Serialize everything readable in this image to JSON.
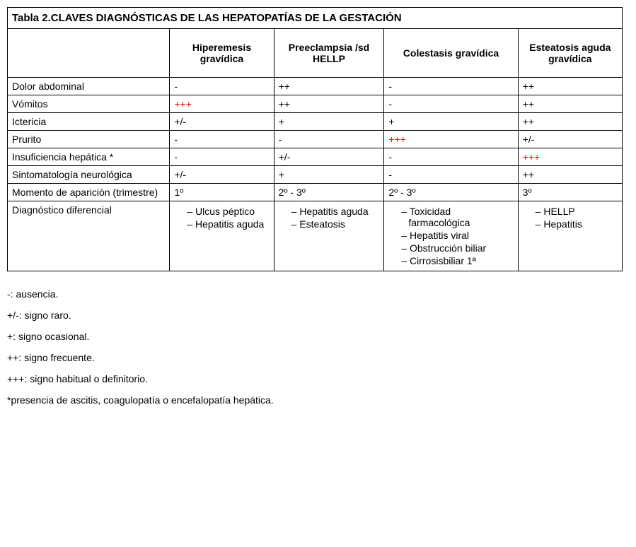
{
  "title": "Tabla 2.CLAVES DIAGNÓSTICAS DE LAS HEPATOPATÍAS DE LA GESTACIÓN",
  "columns": {
    "c1": "Hiperemesis gravídica",
    "c2": "Preeclampsia /sd HELLP",
    "c3": "Colestasis gravídica",
    "c4": "Esteatosis aguda gravídica"
  },
  "col_widths": {
    "label": "218px",
    "c1": "140px",
    "c2": "148px",
    "c3": "180px",
    "c4": "140px"
  },
  "rows": [
    {
      "label": "Dolor abdominal",
      "cells": [
        {
          "v": "-",
          "red": false
        },
        {
          "v": "++",
          "red": false
        },
        {
          "v": "-",
          "red": false
        },
        {
          "v": "++",
          "red": false
        }
      ]
    },
    {
      "label": "Vómitos",
      "cells": [
        {
          "v": "+++",
          "red": true
        },
        {
          "v": "++",
          "red": false
        },
        {
          "v": "-",
          "red": false
        },
        {
          "v": "++",
          "red": false
        }
      ]
    },
    {
      "label": "Ictericia",
      "cells": [
        {
          "v": "+/-",
          "red": false
        },
        {
          "v": "+",
          "red": false
        },
        {
          "v": "+",
          "red": false
        },
        {
          "v": "++",
          "red": false
        }
      ]
    },
    {
      "label": "Prurito",
      "cells": [
        {
          "v": "-",
          "red": false
        },
        {
          "v": "-",
          "red": false
        },
        {
          "v": "+++",
          "red": true
        },
        {
          "v": "+/-",
          "red": false
        }
      ]
    },
    {
      "label": "Insuficiencia hepática *",
      "cells": [
        {
          "v": "-",
          "red": false
        },
        {
          "v": "+/-",
          "red": false
        },
        {
          "v": "-",
          "red": false
        },
        {
          "v": "+++",
          "red": true
        }
      ]
    },
    {
      "label": "Sintomatología neurológica",
      "cells": [
        {
          "v": "+/-",
          "red": false
        },
        {
          "v": "+",
          "red": false
        },
        {
          "v": "-",
          "red": false
        },
        {
          "v": "++",
          "red": false
        }
      ]
    },
    {
      "label": "Momento de aparición (trimestre)",
      "cells": [
        {
          "v": "1º",
          "red": false
        },
        {
          "v": "2º - 3º",
          "red": false
        },
        {
          "v": "2º - 3º",
          "red": false
        },
        {
          "v": "3º",
          "red": false
        }
      ]
    }
  ],
  "diag_row": {
    "label": "Diagnóstico diferencial",
    "lists": [
      [
        "Ulcus péptico",
        "Hepatitis aguda"
      ],
      [
        "Hepatitis aguda",
        "Esteatosis"
      ],
      [
        "Toxicidad farmacológica",
        "Hepatitis viral",
        "Obstrucción biliar",
        "Cirrosisbiliar 1ª"
      ],
      [
        "HELLP",
        "Hepatitis"
      ]
    ]
  },
  "legend": [
    "-: ausencia.",
    "+/-: signo raro.",
    "+: signo ocasional.",
    "++: signo frecuente.",
    "+++:  signo habitual o definitorio.",
    "*presencia de ascitis, coagulopatía o encefalopatía hepática."
  ],
  "colors": {
    "text": "#000000",
    "highlight": "#ff0000",
    "border": "#000000",
    "background": "#ffffff"
  },
  "typography": {
    "base_fontsize_pt": 11,
    "title_fontsize_pt": 12,
    "font_family": "Arial"
  }
}
